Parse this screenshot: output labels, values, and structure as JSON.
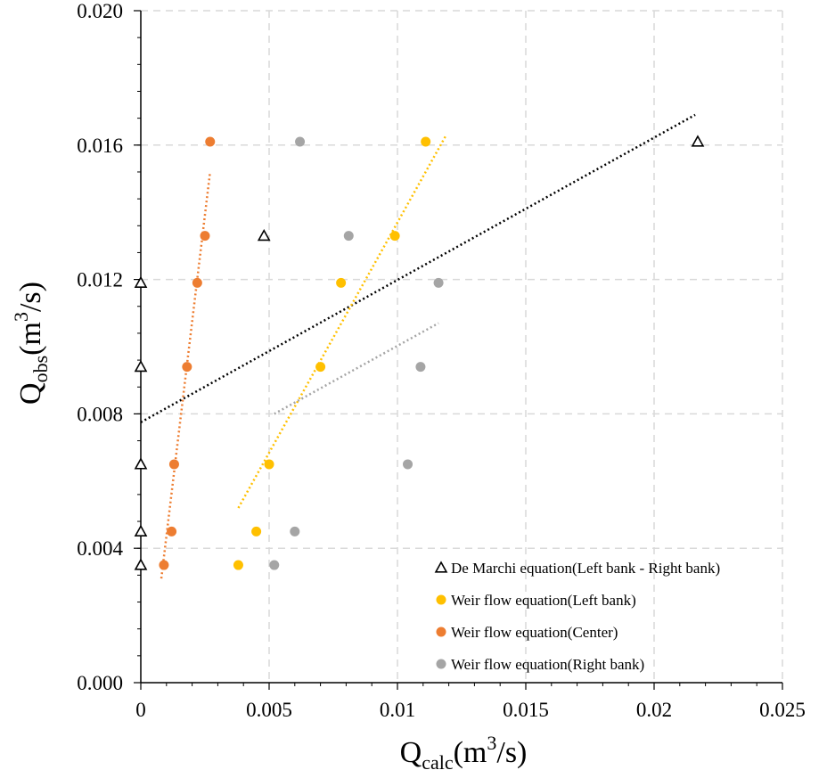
{
  "chart_data": {
    "type": "scatter",
    "title": "",
    "xlabel": {
      "main": "Q",
      "sub": "calc",
      "unit": "(m",
      "sup": "3",
      "unit_end": "/s)"
    },
    "ylabel": {
      "main": "Q",
      "sub": "obs",
      "unit": "(m",
      "sup": "3",
      "unit_end": "/s)"
    },
    "xlim": [
      0,
      0.025
    ],
    "ylim": [
      0,
      0.02
    ],
    "x_ticks": [
      0,
      0.005,
      0.01,
      0.015,
      0.02,
      0.025
    ],
    "x_tick_labels": [
      "0",
      "0.005",
      "0.01",
      "0.015",
      "0.02",
      "0.025"
    ],
    "y_ticks": [
      0,
      0.004,
      0.008,
      0.012,
      0.016,
      0.02
    ],
    "y_tick_labels": [
      "0.000",
      "0.004",
      "0.008",
      "0.012",
      "0.016",
      "0.020"
    ],
    "grid": true,
    "legend_position": "bottom-right",
    "series": [
      {
        "name": "De Marchi equation(Left bank - Right bank)",
        "marker": "open-triangle",
        "color": "#000000",
        "points": [
          [
            0.0,
            0.0035
          ],
          [
            0.0,
            0.0045
          ],
          [
            0.0,
            0.0065
          ],
          [
            0.0,
            0.0094
          ],
          [
            0.0,
            0.0119
          ],
          [
            0.0048,
            0.0133
          ],
          [
            0.0217,
            0.0161
          ]
        ],
        "trendline": {
          "from": [
            0.0,
            0.00775
          ],
          "to": [
            0.0216,
            0.0169
          ]
        }
      },
      {
        "name": "Weir flow equation(Left bank)",
        "marker": "filled-circle",
        "color": "#FFC000",
        "points": [
          [
            0.0038,
            0.0035
          ],
          [
            0.0045,
            0.0045
          ],
          [
            0.005,
            0.0065
          ],
          [
            0.007,
            0.0094
          ],
          [
            0.0078,
            0.0119
          ],
          [
            0.0099,
            0.0133
          ],
          [
            0.0111,
            0.0161
          ]
        ],
        "trendline": {
          "from": [
            0.0038,
            0.0052
          ],
          "to": [
            0.0119,
            0.0163
          ]
        }
      },
      {
        "name": "Weir flow equation(Center)",
        "marker": "filled-circle",
        "color": "#ED7D31",
        "points": [
          [
            0.0009,
            0.0035
          ],
          [
            0.0012,
            0.0045
          ],
          [
            0.0013,
            0.0065
          ],
          [
            0.0018,
            0.0094
          ],
          [
            0.0022,
            0.0119
          ],
          [
            0.0025,
            0.0133
          ],
          [
            0.0027,
            0.0161
          ]
        ],
        "trendline": {
          "from": [
            0.0008,
            0.0031
          ],
          "to": [
            0.0027,
            0.0152
          ]
        }
      },
      {
        "name": "Weir flow equation(Right bank)",
        "marker": "filled-circle",
        "color": "#A5A5A5",
        "points": [
          [
            0.0052,
            0.0035
          ],
          [
            0.006,
            0.0045
          ],
          [
            0.0104,
            0.0065
          ],
          [
            0.0109,
            0.0094
          ],
          [
            0.0116,
            0.0119
          ],
          [
            0.0081,
            0.0133
          ],
          [
            0.0062,
            0.0161
          ]
        ],
        "trendline": {
          "from": [
            0.0052,
            0.008
          ],
          "to": [
            0.0116,
            0.0107
          ]
        }
      }
    ]
  }
}
